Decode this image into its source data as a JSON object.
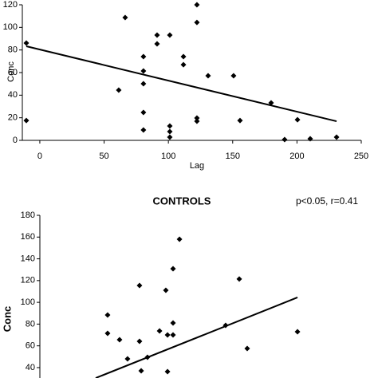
{
  "chart_data": [
    {
      "type": "scatter",
      "x_label": "Lag",
      "y_label": "Conc",
      "xlim": [
        -13.6,
        250
      ],
      "xticks": [
        0,
        50,
        100,
        150,
        200,
        250
      ],
      "ylim": [
        0,
        120
      ],
      "yticks": [
        0,
        20,
        40,
        60,
        80,
        100,
        120
      ],
      "color": "#000000",
      "x": [
        -10.5,
        -10.5,
        61.4,
        66.4,
        80.6,
        80.6,
        80.6,
        80.6,
        80.6,
        91.2,
        91.2,
        101.1,
        101.1,
        101.1,
        101.1,
        111.7,
        111.7,
        122.2,
        122.2,
        122.2,
        122.2,
        130.9,
        150.7,
        155.7,
        179.9,
        190.4,
        200.4,
        210.3,
        230.8
      ],
      "y": [
        17.6,
        86.1,
        44.5,
        108.7,
        74.1,
        61.4,
        50.1,
        24.7,
        9.2,
        93.2,
        85.4,
        93.2,
        12.7,
        7.8,
        2.8,
        74.1,
        67.0,
        120.0,
        104.4,
        19.8,
        16.9,
        57.2,
        57.2,
        17.6,
        33.2,
        0.7,
        18.3,
        1.4,
        2.8
      ],
      "trend": {
        "x": [
          -10.5,
          230.8
        ],
        "y": [
          83.3,
          16.9
        ]
      }
    },
    {
      "type": "scatter",
      "title": "CONTROLS",
      "annotation": "p<0.05, r=0.41",
      "y_label": "Conc",
      "xlim": [
        0,
        250
      ],
      "ylim": [
        30,
        180
      ],
      "yticks": [
        40,
        60,
        80,
        100,
        120,
        140,
        160,
        180
      ],
      "color": "#000000",
      "x": [
        52.7,
        52.7,
        62.0,
        68.2,
        77.5,
        77.5,
        78.8,
        83.7,
        93.1,
        98.0,
        99.3,
        99.3,
        103.6,
        103.6,
        103.6,
        108.6,
        144.5,
        155.1,
        161.3,
        200.4
      ],
      "y": [
        88.4,
        71.5,
        65.6,
        48.0,
        115.5,
        64.2,
        37.0,
        49.5,
        73.7,
        111.1,
        36.3,
        70.0,
        130.9,
        81.0,
        70.0,
        158.0,
        78.8,
        121.4,
        57.6,
        73.0
      ],
      "trend": {
        "x": [
          43.4,
          200.4
        ],
        "y": [
          30.4,
          104.5
        ]
      }
    }
  ]
}
